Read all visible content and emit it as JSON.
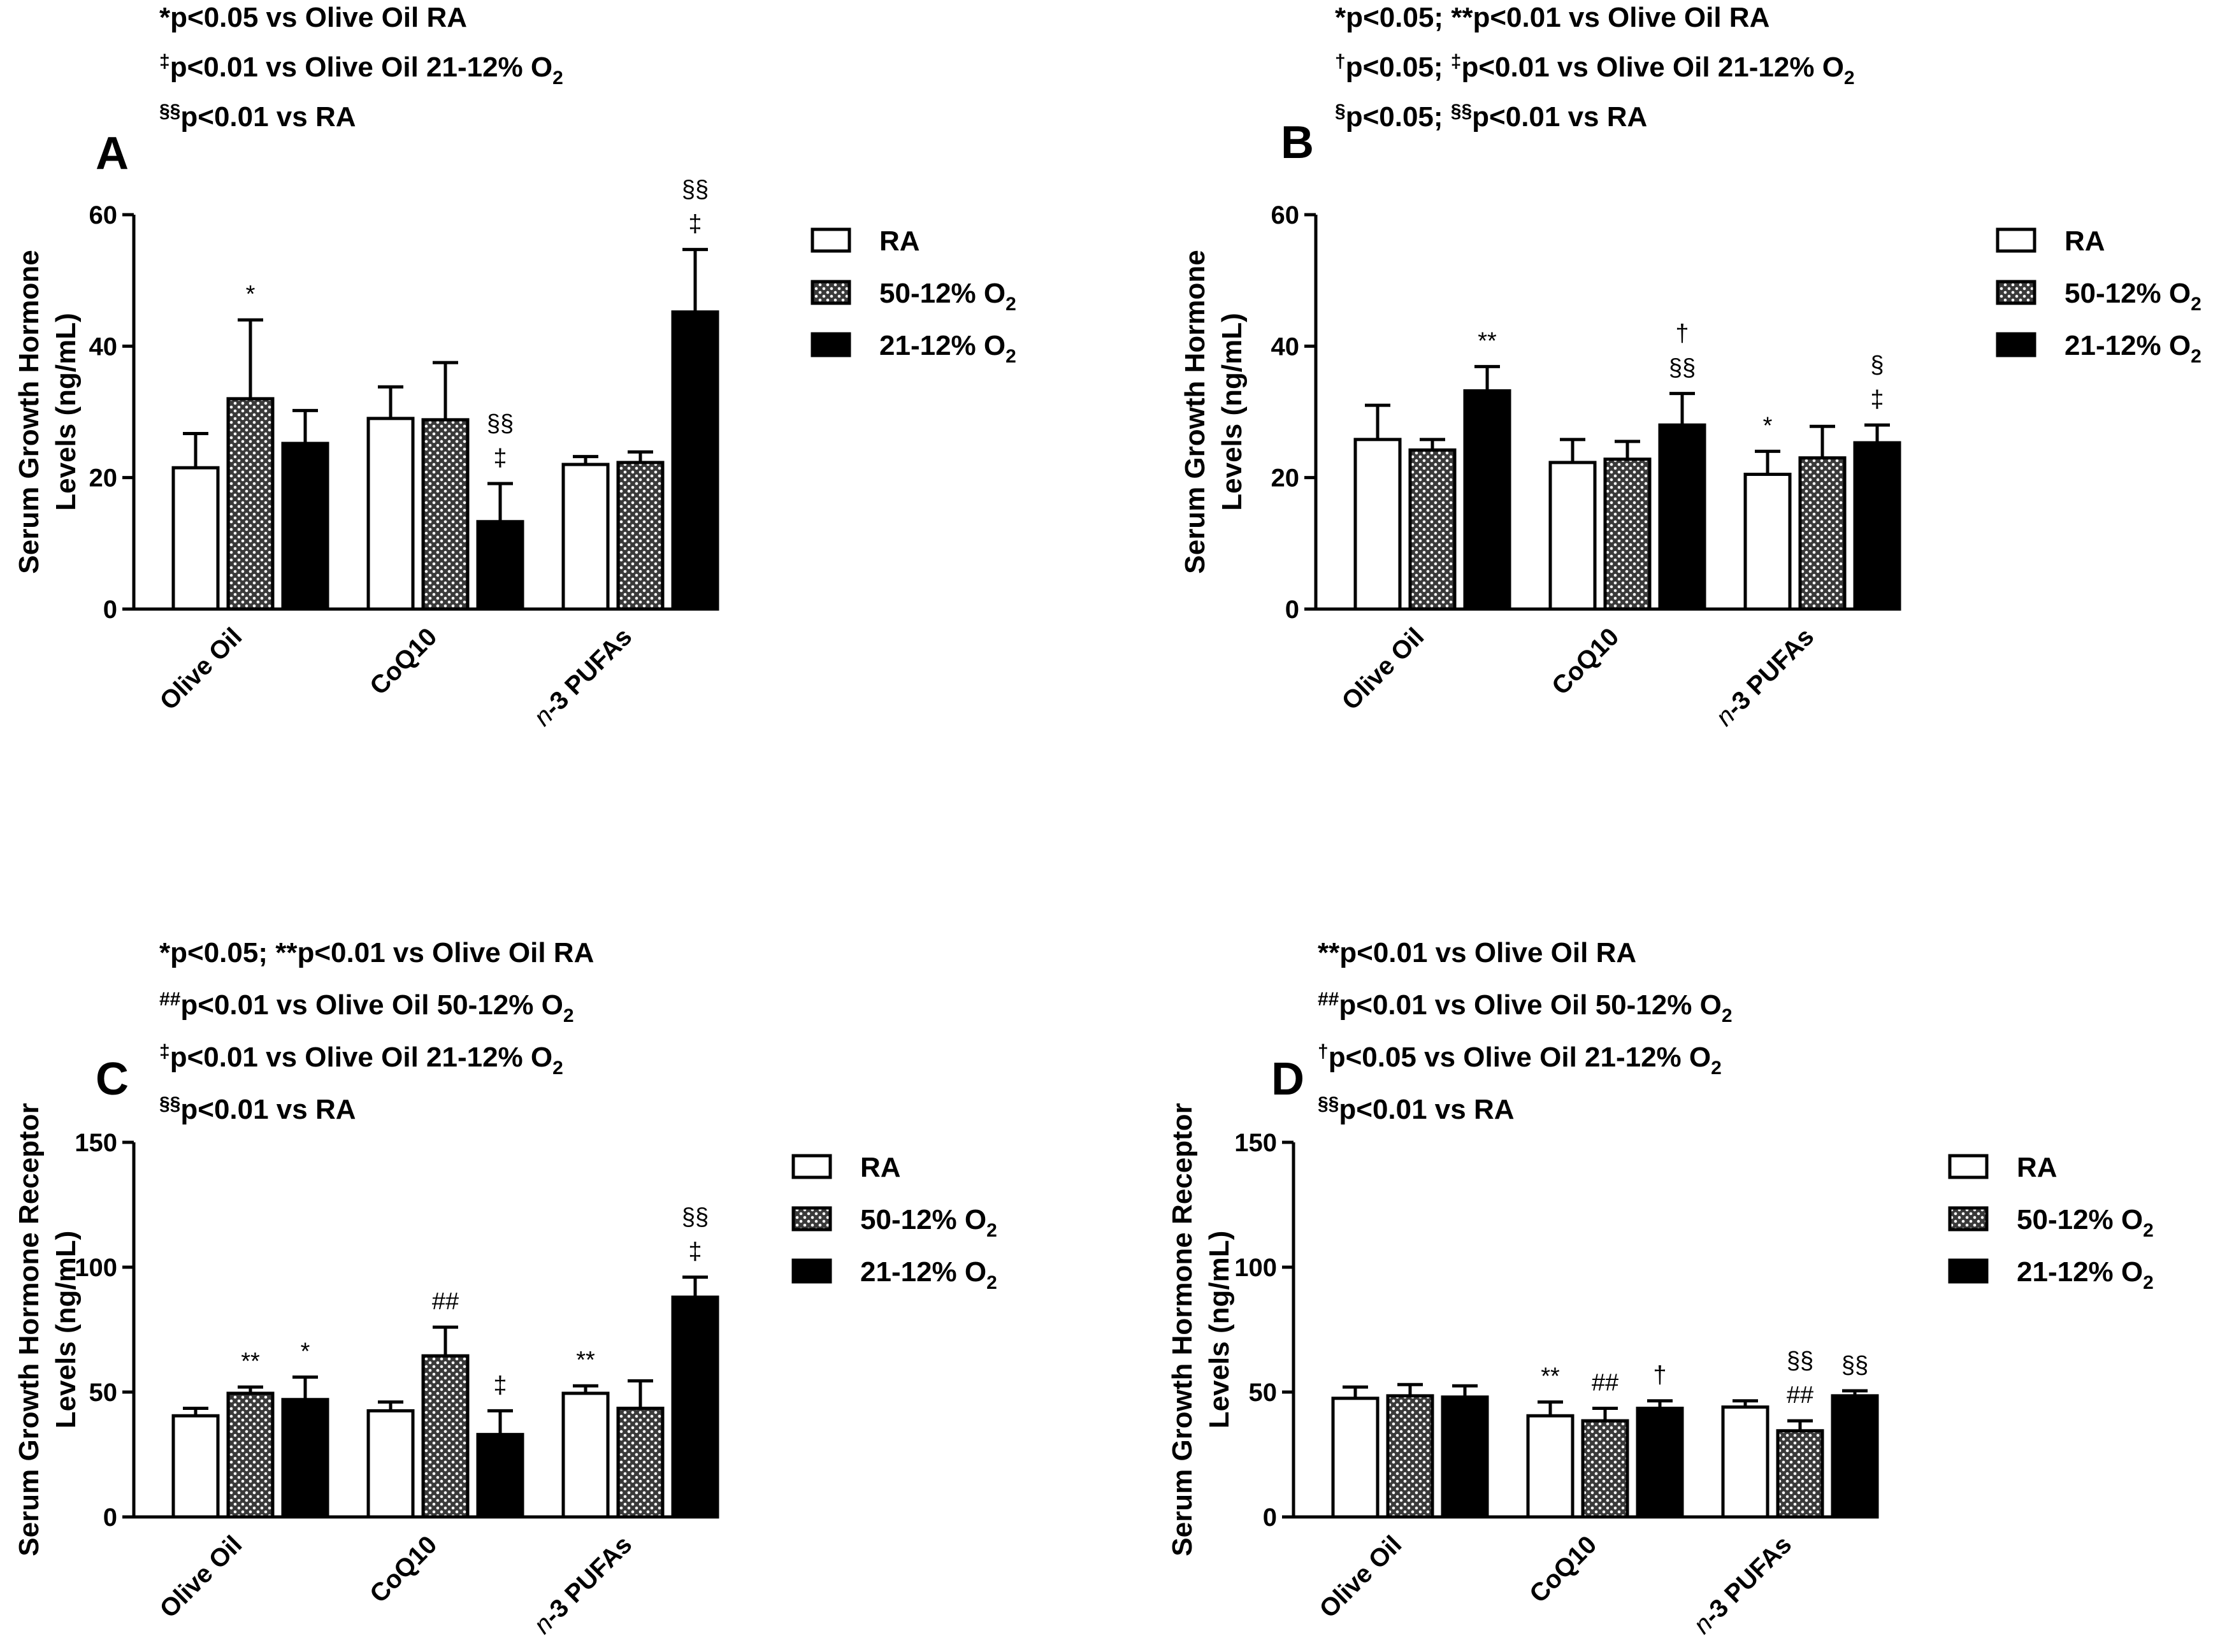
{
  "groups": [
    "RA",
    "50-12% O2",
    "21-12% O2"
  ],
  "categories": [
    "Olive Oil",
    "CoQ10",
    "n-3 PUFAs"
  ],
  "colors": {
    "bar_edge": "#000000",
    "ra_fill": "#ffffff",
    "hatched_fill": "#3a3a3a",
    "hatched_dot": "#ffffff",
    "solid_fill": "#000000"
  },
  "chart_data": [
    {
      "type": "bar",
      "panel": "A",
      "ylabel_line1": "Serum Growth  Hormone",
      "ylabel_line2": "Levels (ng/mL)",
      "ylim": [
        0,
        60
      ],
      "yticks": [
        0,
        20,
        40,
        60
      ],
      "notes": [
        {
          "sup": "",
          "text": "*p<0.05 vs Olive Oil RA",
          "o2": false
        },
        {
          "sup": "‡",
          "text": "p<0.01 vs Olive Oil 21-12% O",
          "o2": true
        },
        {
          "sup": "§§",
          "text": "p<0.01 vs RA",
          "o2": false
        }
      ],
      "series": [
        {
          "name": "RA",
          "values": [
            21.5,
            29.0,
            22.0
          ],
          "errors": [
            5.2,
            4.8,
            1.2
          ],
          "sig": [
            "",
            "",
            ""
          ]
        },
        {
          "name": "50-12% O2",
          "values": [
            32.0,
            28.8,
            22.3
          ],
          "errors": [
            12.0,
            8.7,
            1.6
          ],
          "sig": [
            "*",
            "",
            ""
          ]
        },
        {
          "name": "21-12% O2",
          "values": [
            25.2,
            13.3,
            45.2
          ],
          "errors": [
            5.0,
            5.8,
            9.5
          ],
          "sig": [
            "",
            "§§\n‡",
            "§§\n‡"
          ]
        }
      ]
    },
    {
      "type": "bar",
      "panel": "B",
      "ylabel_line1": "Serum Growth  Hormone",
      "ylabel_line2": "Levels (ng/mL)",
      "ylim": [
        0,
        60
      ],
      "yticks": [
        0,
        20,
        40,
        60
      ],
      "notes": [
        {
          "sup": "",
          "text": "*p<0.05; **p<0.01 vs Olive Oil RA",
          "o2": false
        },
        {
          "sup": "†",
          "text": "p<0.05; ",
          "sup2": "‡",
          "text2": "p<0.01 vs Olive Oil 21-12% O",
          "o2": true
        },
        {
          "sup": "§",
          "text": "p<0.05; ",
          "sup2": "§§",
          "text2": "p<0.01 vs RA",
          "o2": false
        }
      ],
      "series": [
        {
          "name": "RA",
          "values": [
            25.8,
            22.3,
            20.5
          ],
          "errors": [
            5.2,
            3.5,
            3.5
          ],
          "sig": [
            "",
            "",
            "*"
          ]
        },
        {
          "name": "50-12% O2",
          "values": [
            24.2,
            22.8,
            23.0
          ],
          "errors": [
            1.6,
            2.7,
            4.8
          ],
          "sig": [
            "",
            "",
            ""
          ]
        },
        {
          "name": "21-12% O2",
          "values": [
            33.2,
            28.0,
            25.3
          ],
          "errors": [
            3.7,
            4.8,
            2.7
          ],
          "sig": [
            "**",
            "†\n§§",
            "§\n‡"
          ]
        }
      ]
    },
    {
      "type": "bar",
      "panel": "C",
      "ylabel_line1": "Serum Growth  Hormone Receptor",
      "ylabel_line2": "Levels (ng/mL)",
      "ylim": [
        0,
        150
      ],
      "yticks": [
        0,
        50,
        100,
        150
      ],
      "notes": [
        {
          "sup": "",
          "text": "*p<0.05; **p<0.01 vs Olive Oil RA",
          "o2": false
        },
        {
          "sup": "##",
          "text": "p<0.01 vs Olive Oil 50-12% O",
          "o2": true
        },
        {
          "sup": "‡",
          "text": "p<0.01 vs Olive Oil 21-12% O",
          "o2": true
        },
        {
          "sup": "§§",
          "text": "p<0.01 vs RA",
          "o2": false
        }
      ],
      "series": [
        {
          "name": "RA",
          "values": [
            40.5,
            42.5,
            49.5
          ],
          "errors": [
            3.0,
            3.5,
            3.0
          ],
          "sig": [
            "",
            "",
            "**"
          ]
        },
        {
          "name": "50-12% O2",
          "values": [
            49.5,
            64.5,
            43.5
          ],
          "errors": [
            2.5,
            11.5,
            11.0
          ],
          "sig": [
            "**",
            "##",
            ""
          ]
        },
        {
          "name": "21-12% O2",
          "values": [
            47.0,
            33.0,
            88.0
          ],
          "errors": [
            9.0,
            9.5,
            8.0
          ],
          "sig": [
            "*",
            "‡",
            "§§\n‡"
          ]
        }
      ]
    },
    {
      "type": "bar",
      "panel": "D",
      "ylabel_line1": "Serum Growth  Hormone Receptor",
      "ylabel_line2": "Levels (ng/mL)",
      "ylim": [
        0,
        150
      ],
      "yticks": [
        0,
        50,
        100,
        150
      ],
      "notes": [
        {
          "sup": "",
          "text": "**p<0.01 vs Olive Oil RA",
          "o2": false
        },
        {
          "sup": "##",
          "text": "p<0.01 vs Olive Oil 50-12% O",
          "o2": true
        },
        {
          "sup": "†",
          "text": "p<0.05 vs Olive Oil 21-12% O",
          "o2": true
        },
        {
          "sup": "§§",
          "text": "p<0.01 vs RA",
          "o2": false
        }
      ],
      "series": [
        {
          "name": "RA",
          "values": [
            47.5,
            40.5,
            44.0
          ],
          "errors": [
            4.5,
            5.5,
            2.5
          ],
          "sig": [
            "",
            "**",
            ""
          ]
        },
        {
          "name": "50-12% O2",
          "values": [
            48.5,
            38.5,
            34.5
          ],
          "errors": [
            4.5,
            5.0,
            4.0
          ],
          "sig": [
            "",
            "##",
            "§§\n##"
          ]
        },
        {
          "name": "21-12% O2",
          "values": [
            48.0,
            43.5,
            48.5
          ],
          "errors": [
            4.5,
            3.0,
            2.0
          ],
          "sig": [
            "",
            "†",
            "§§"
          ]
        }
      ]
    }
  ]
}
